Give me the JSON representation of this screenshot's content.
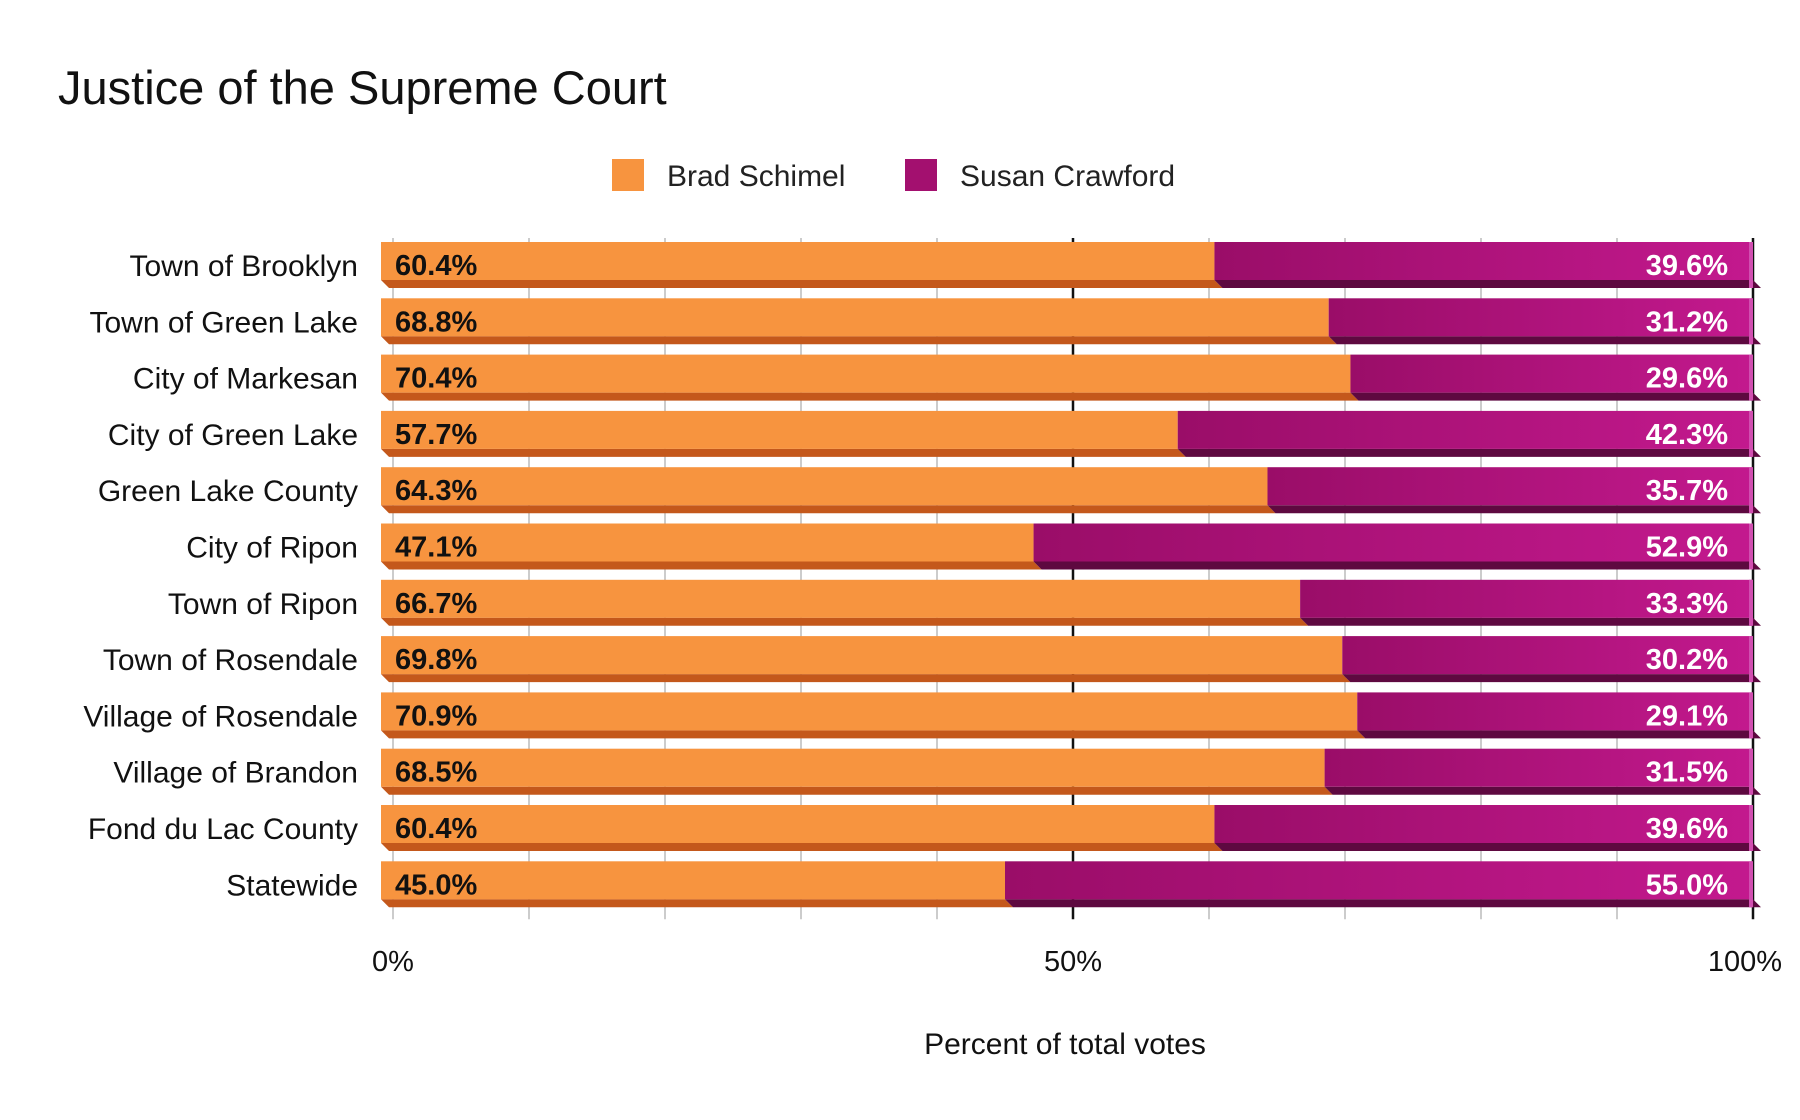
{
  "chart_data": {
    "type": "bar",
    "orientation": "horizontal",
    "stacked": true,
    "title": "Justice of the Supreme Court",
    "xlabel": "Percent of total votes",
    "ylabel": "",
    "xlim": [
      0,
      100
    ],
    "x_ticks": [
      "0%",
      "50%",
      "100%"
    ],
    "grid": true,
    "legend_placement": "top",
    "categories": [
      "Town of Brooklyn",
      "Town of Green Lake",
      "City of Markesan",
      "City of Green Lake",
      "Green Lake County",
      "City of Ripon",
      "Town of Ripon",
      "Town of Rosendale",
      "Village of Rosendale",
      "Village of Brandon",
      "Fond du Lac County",
      "Statewide"
    ],
    "series": [
      {
        "name": "Brad Schimel",
        "color": "#f7943f",
        "values": [
          60.4,
          68.8,
          70.4,
          57.7,
          64.3,
          47.1,
          66.7,
          69.8,
          70.9,
          68.5,
          60.4,
          45.0
        ],
        "labels": [
          "60.4%",
          "68.8%",
          "70.4%",
          "57.7%",
          "64.3%",
          "47.1%",
          "66.7%",
          "69.8%",
          "70.9%",
          "68.5%",
          "60.4%",
          "45.0%"
        ]
      },
      {
        "name": "Susan Crawford",
        "color": "#a3106f",
        "values": [
          39.6,
          31.2,
          29.6,
          42.3,
          35.7,
          52.9,
          33.3,
          30.2,
          29.1,
          31.5,
          39.6,
          55.0
        ],
        "labels": [
          "39.6%",
          "31.2%",
          "29.6%",
          "42.3%",
          "35.7%",
          "52.9%",
          "33.3%",
          "30.2%",
          "29.1%",
          "31.5%",
          "39.6%",
          "55.0%"
        ]
      }
    ]
  }
}
